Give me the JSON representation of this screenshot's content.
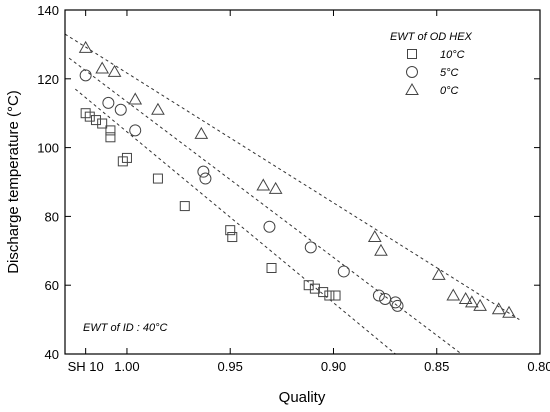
{
  "chart_data": {
    "type": "scatter",
    "title": "",
    "xlabel": "Quality",
    "ylabel": "Discharge temperature (°C)",
    "xlim": [
      1.03,
      0.8
    ],
    "ylim": [
      40,
      140
    ],
    "x_reversed": true,
    "x_ticks": [
      {
        "value": 1.02,
        "label": "SH 10"
      },
      {
        "value": 1.0,
        "label": "1.00"
      },
      {
        "value": 0.95,
        "label": "0.95"
      },
      {
        "value": 0.9,
        "label": "0.90"
      },
      {
        "value": 0.85,
        "label": "0.85"
      },
      {
        "value": 0.8,
        "label": "0.80"
      }
    ],
    "y_ticks": [
      40,
      60,
      80,
      100,
      120,
      140
    ],
    "grid": false,
    "legend": {
      "title": "EWT of OD HEX",
      "position": "top-right",
      "entries": [
        {
          "label": "10°C",
          "marker": "square"
        },
        {
          "label": "5°C",
          "marker": "circle"
        },
        {
          "label": "0°C",
          "marker": "triangle"
        }
      ]
    },
    "annotation": "EWT of ID : 40°C",
    "series": [
      {
        "name": "10°C",
        "marker": "square",
        "points": [
          [
            1.02,
            110
          ],
          [
            1.018,
            109
          ],
          [
            1.015,
            108
          ],
          [
            1.012,
            107
          ],
          [
            1.008,
            105
          ],
          [
            1.008,
            103
          ],
          [
            1.002,
            96
          ],
          [
            1.0,
            97
          ],
          [
            0.985,
            91
          ],
          [
            0.972,
            83
          ],
          [
            0.95,
            76
          ],
          [
            0.949,
            74
          ],
          [
            0.93,
            65
          ],
          [
            0.912,
            60
          ],
          [
            0.909,
            59
          ],
          [
            0.905,
            58
          ],
          [
            0.902,
            57
          ],
          [
            0.899,
            57
          ]
        ],
        "fit_line": [
          [
            1.025,
            117
          ],
          [
            0.87,
            40
          ]
        ]
      },
      {
        "name": "5°C",
        "marker": "circle",
        "points": [
          [
            1.02,
            121
          ],
          [
            1.009,
            113
          ],
          [
            1.003,
            111
          ],
          [
            0.996,
            105
          ],
          [
            0.963,
            93
          ],
          [
            0.962,
            91
          ],
          [
            0.931,
            77
          ],
          [
            0.911,
            71
          ],
          [
            0.895,
            64
          ],
          [
            0.878,
            57
          ],
          [
            0.875,
            56
          ],
          [
            0.87,
            55
          ],
          [
            0.869,
            54
          ]
        ],
        "fit_line": [
          [
            1.028,
            126
          ],
          [
            0.838,
            40
          ]
        ]
      },
      {
        "name": "0°C",
        "marker": "triangle",
        "points": [
          [
            1.02,
            129
          ],
          [
            1.012,
            123
          ],
          [
            1.006,
            122
          ],
          [
            0.996,
            114
          ],
          [
            0.985,
            111
          ],
          [
            0.964,
            104
          ],
          [
            0.934,
            89
          ],
          [
            0.928,
            88
          ],
          [
            0.88,
            74
          ],
          [
            0.877,
            70
          ],
          [
            0.849,
            63
          ],
          [
            0.842,
            57
          ],
          [
            0.836,
            56
          ],
          [
            0.833,
            55
          ],
          [
            0.829,
            54
          ],
          [
            0.82,
            53
          ],
          [
            0.815,
            52
          ]
        ],
        "fit_line": [
          [
            1.03,
            133
          ],
          [
            0.81,
            50
          ]
        ]
      }
    ]
  }
}
